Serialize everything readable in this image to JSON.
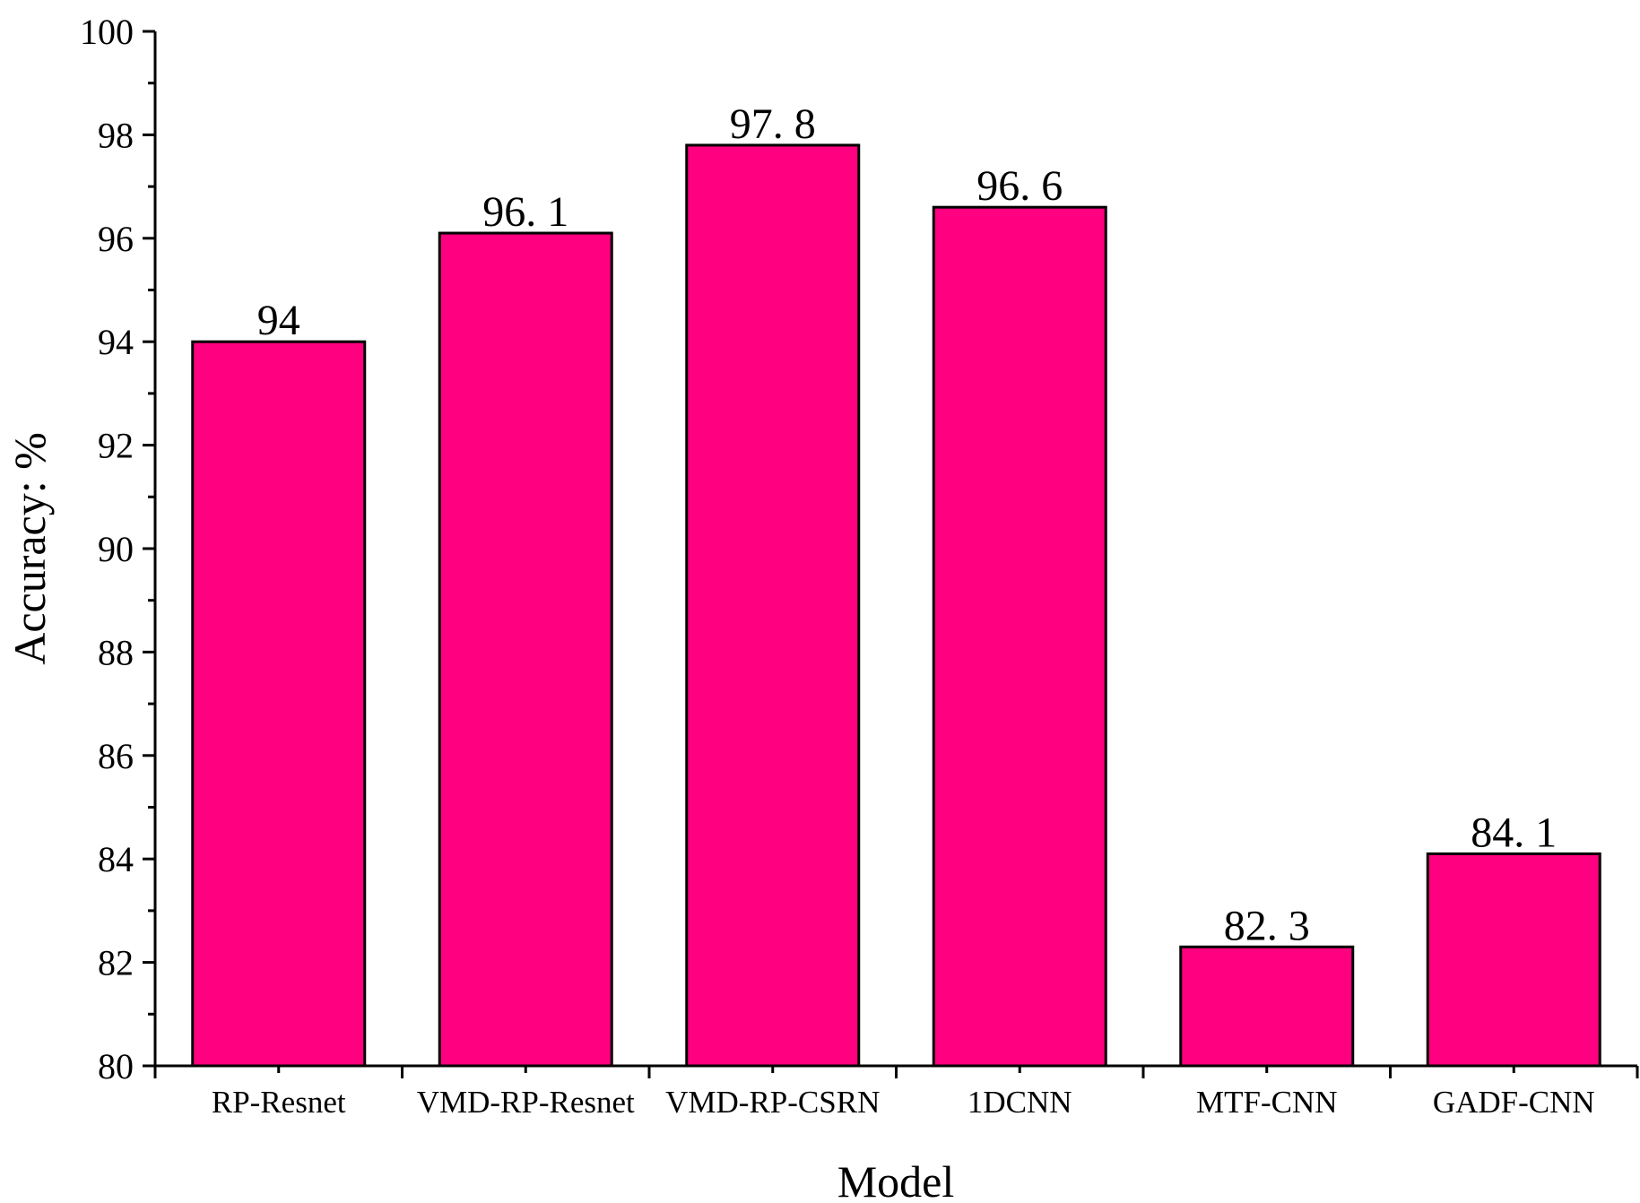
{
  "chart_data": {
    "type": "bar",
    "xlabel": "Model",
    "ylabel": "Accuracy: %",
    "ylim": [
      80,
      100
    ],
    "yticks": [
      80,
      82,
      84,
      86,
      88,
      90,
      92,
      94,
      96,
      98,
      100
    ],
    "categories": [
      "RP-Resnet",
      "VMD-RP-Resnet",
      "VMD-RP-CSRN",
      "1DCNN",
      "MTF-CNN",
      "GADF-CNN"
    ],
    "values": [
      94,
      96.1,
      97.8,
      96.6,
      82.3,
      84.1
    ],
    "data_labels": [
      "94",
      "96. 1",
      "97. 8",
      "96. 6",
      "82. 3",
      "84. 1"
    ],
    "bar_color": "#FF0080",
    "grid": false,
    "legend": "none"
  }
}
